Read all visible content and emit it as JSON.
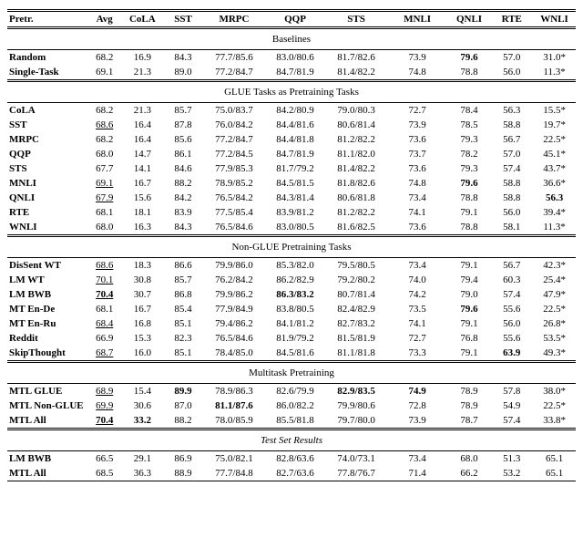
{
  "columns": [
    "Pretr.",
    "Avg",
    "CoLA",
    "SST",
    "MRPC",
    "QQP",
    "STS",
    "MNLI",
    "QNLI",
    "RTE",
    "WNLI"
  ],
  "sections": [
    {
      "title": "Baselines",
      "rows": [
        {
          "label": "Random",
          "label_bold": true,
          "cells": [
            {
              "v": "68.2"
            },
            {
              "v": "16.9"
            },
            {
              "v": "84.3"
            },
            {
              "v": "77.7/85.6"
            },
            {
              "v": "83.0/80.6"
            },
            {
              "v": "81.7/82.6"
            },
            {
              "v": "73.9"
            },
            {
              "v": "79.6",
              "b": true
            },
            {
              "v": "57.0"
            },
            {
              "v": "31.0*"
            }
          ]
        },
        {
          "label": "Single-Task",
          "label_bold": true,
          "cells": [
            {
              "v": "69.1"
            },
            {
              "v": "21.3"
            },
            {
              "v": "89.0"
            },
            {
              "v": "77.2/84.7"
            },
            {
              "v": "84.7/81.9"
            },
            {
              "v": "81.4/82.2"
            },
            {
              "v": "74.8"
            },
            {
              "v": "78.8"
            },
            {
              "v": "56.0"
            },
            {
              "v": "11.3*"
            }
          ]
        }
      ]
    },
    {
      "title": "GLUE Tasks as Pretraining Tasks",
      "rows": [
        {
          "label": "CoLA",
          "label_bold": true,
          "cells": [
            {
              "v": "68.2"
            },
            {
              "v": "21.3"
            },
            {
              "v": "85.7"
            },
            {
              "v": "75.0/83.7"
            },
            {
              "v": "84.2/80.9"
            },
            {
              "v": "79.0/80.3"
            },
            {
              "v": "72.7"
            },
            {
              "v": "78.4"
            },
            {
              "v": "56.3"
            },
            {
              "v": "15.5*"
            }
          ]
        },
        {
          "label": "SST",
          "label_bold": true,
          "cells": [
            {
              "v": "68.6",
              "u": true
            },
            {
              "v": "16.4"
            },
            {
              "v": "87.8"
            },
            {
              "v": "76.0/84.2"
            },
            {
              "v": "84.4/81.6"
            },
            {
              "v": "80.6/81.4"
            },
            {
              "v": "73.9"
            },
            {
              "v": "78.5"
            },
            {
              "v": "58.8"
            },
            {
              "v": "19.7*"
            }
          ]
        },
        {
          "label": "MRPC",
          "label_bold": true,
          "cells": [
            {
              "v": "68.2"
            },
            {
              "v": "16.4"
            },
            {
              "v": "85.6"
            },
            {
              "v": "77.2/84.7"
            },
            {
              "v": "84.4/81.8"
            },
            {
              "v": "81.2/82.2"
            },
            {
              "v": "73.6"
            },
            {
              "v": "79.3"
            },
            {
              "v": "56.7"
            },
            {
              "v": "22.5*"
            }
          ]
        },
        {
          "label": "QQP",
          "label_bold": true,
          "cells": [
            {
              "v": "68.0"
            },
            {
              "v": "14.7"
            },
            {
              "v": "86.1"
            },
            {
              "v": "77.2/84.5"
            },
            {
              "v": "84.7/81.9"
            },
            {
              "v": "81.1/82.0"
            },
            {
              "v": "73.7"
            },
            {
              "v": "78.2"
            },
            {
              "v": "57.0"
            },
            {
              "v": "45.1*"
            }
          ]
        },
        {
          "label": "STS",
          "label_bold": true,
          "cells": [
            {
              "v": "67.7"
            },
            {
              "v": "14.1"
            },
            {
              "v": "84.6"
            },
            {
              "v": "77.9/85.3"
            },
            {
              "v": "81.7/79.2"
            },
            {
              "v": "81.4/82.2"
            },
            {
              "v": "73.6"
            },
            {
              "v": "79.3"
            },
            {
              "v": "57.4"
            },
            {
              "v": "43.7*"
            }
          ]
        },
        {
          "label": "MNLI",
          "label_bold": true,
          "cells": [
            {
              "v": "69.1",
              "u": true
            },
            {
              "v": "16.7"
            },
            {
              "v": "88.2"
            },
            {
              "v": "78.9/85.2"
            },
            {
              "v": "84.5/81.5"
            },
            {
              "v": "81.8/82.6"
            },
            {
              "v": "74.8"
            },
            {
              "v": "79.6",
              "b": true
            },
            {
              "v": "58.8"
            },
            {
              "v": "36.6*"
            }
          ]
        },
        {
          "label": "QNLI",
          "label_bold": true,
          "cells": [
            {
              "v": "67.9",
              "u": true
            },
            {
              "v": "15.6"
            },
            {
              "v": "84.2"
            },
            {
              "v": "76.5/84.2"
            },
            {
              "v": "84.3/81.4"
            },
            {
              "v": "80.6/81.8"
            },
            {
              "v": "73.4"
            },
            {
              "v": "78.8"
            },
            {
              "v": "58.8"
            },
            {
              "v": "56.3",
              "b": true
            }
          ]
        },
        {
          "label": "RTE",
          "label_bold": true,
          "cells": [
            {
              "v": "68.1"
            },
            {
              "v": "18.1"
            },
            {
              "v": "83.9"
            },
            {
              "v": "77.5/85.4"
            },
            {
              "v": "83.9/81.2"
            },
            {
              "v": "81.2/82.2"
            },
            {
              "v": "74.1"
            },
            {
              "v": "79.1"
            },
            {
              "v": "56.0"
            },
            {
              "v": "39.4*"
            }
          ]
        },
        {
          "label": "WNLI",
          "label_bold": true,
          "cells": [
            {
              "v": "68.0"
            },
            {
              "v": "16.3"
            },
            {
              "v": "84.3"
            },
            {
              "v": "76.5/84.6"
            },
            {
              "v": "83.0/80.5"
            },
            {
              "v": "81.6/82.5"
            },
            {
              "v": "73.6"
            },
            {
              "v": "78.8"
            },
            {
              "v": "58.1"
            },
            {
              "v": "11.3*"
            }
          ]
        }
      ]
    },
    {
      "title": "Non-GLUE Pretraining Tasks",
      "rows": [
        {
          "label": "DisSent WT",
          "label_bold": true,
          "cells": [
            {
              "v": "68.6",
              "u": true
            },
            {
              "v": "18.3"
            },
            {
              "v": "86.6"
            },
            {
              "v": "79.9/86.0"
            },
            {
              "v": "85.3/82.0"
            },
            {
              "v": "79.5/80.5"
            },
            {
              "v": "73.4"
            },
            {
              "v": "79.1"
            },
            {
              "v": "56.7"
            },
            {
              "v": "42.3*"
            }
          ]
        },
        {
          "label": "LM WT",
          "label_bold": true,
          "cells": [
            {
              "v": "70.1",
              "u": true
            },
            {
              "v": "30.8"
            },
            {
              "v": "85.7"
            },
            {
              "v": "76.2/84.2"
            },
            {
              "v": "86.2/82.9"
            },
            {
              "v": "79.2/80.2"
            },
            {
              "v": "74.0"
            },
            {
              "v": "79.4"
            },
            {
              "v": "60.3"
            },
            {
              "v": "25.4*"
            }
          ]
        },
        {
          "label": "LM BWB",
          "label_bold": true,
          "cells": [
            {
              "v": "70.4",
              "b": true,
              "u": true
            },
            {
              "v": "30.7"
            },
            {
              "v": "86.8"
            },
            {
              "v": "79.9/86.2"
            },
            {
              "v": "86.3/83.2",
              "b": true
            },
            {
              "v": "80.7/81.4"
            },
            {
              "v": "74.2"
            },
            {
              "v": "79.0"
            },
            {
              "v": "57.4"
            },
            {
              "v": "47.9*"
            }
          ]
        },
        {
          "label": "MT En-De",
          "label_bold": true,
          "cells": [
            {
              "v": "68.1"
            },
            {
              "v": "16.7"
            },
            {
              "v": "85.4"
            },
            {
              "v": "77.9/84.9"
            },
            {
              "v": "83.8/80.5"
            },
            {
              "v": "82.4/82.9"
            },
            {
              "v": "73.5"
            },
            {
              "v": "79.6",
              "b": true
            },
            {
              "v": "55.6"
            },
            {
              "v": "22.5*"
            }
          ]
        },
        {
          "label": "MT En-Ru",
          "label_bold": true,
          "cells": [
            {
              "v": "68.4",
              "u": true
            },
            {
              "v": "16.8"
            },
            {
              "v": "85.1"
            },
            {
              "v": "79.4/86.2"
            },
            {
              "v": "84.1/81.2"
            },
            {
              "v": "82.7/83.2"
            },
            {
              "v": "74.1"
            },
            {
              "v": "79.1"
            },
            {
              "v": "56.0"
            },
            {
              "v": "26.8*"
            }
          ]
        },
        {
          "label": "Reddit",
          "label_bold": true,
          "cells": [
            {
              "v": "66.9"
            },
            {
              "v": "15.3"
            },
            {
              "v": "82.3"
            },
            {
              "v": "76.5/84.6"
            },
            {
              "v": "81.9/79.2"
            },
            {
              "v": "81.5/81.9"
            },
            {
              "v": "72.7"
            },
            {
              "v": "76.8"
            },
            {
              "v": "55.6"
            },
            {
              "v": "53.5*"
            }
          ]
        },
        {
          "label": "SkipThought",
          "label_bold": true,
          "cells": [
            {
              "v": "68.7",
              "u": true
            },
            {
              "v": "16.0"
            },
            {
              "v": "85.1"
            },
            {
              "v": "78.4/85.0"
            },
            {
              "v": "84.5/81.6"
            },
            {
              "v": "81.1/81.8"
            },
            {
              "v": "73.3"
            },
            {
              "v": "79.1"
            },
            {
              "v": "63.9",
              "b": true
            },
            {
              "v": "49.3*"
            }
          ]
        }
      ]
    },
    {
      "title": "Multitask Pretraining",
      "rows": [
        {
          "label": "MTL GLUE",
          "label_bold": true,
          "cells": [
            {
              "v": "68.9",
              "u": true
            },
            {
              "v": "15.4"
            },
            {
              "v": "89.9",
              "b": true
            },
            {
              "v": "78.9/86.3"
            },
            {
              "v": "82.6/79.9"
            },
            {
              "v": "82.9/83.5",
              "b": true
            },
            {
              "v": "74.9",
              "b": true
            },
            {
              "v": "78.9"
            },
            {
              "v": "57.8"
            },
            {
              "v": "38.0*"
            }
          ]
        },
        {
          "label": "MTL Non-GLUE",
          "label_bold": true,
          "cells": [
            {
              "v": "69.9",
              "u": true
            },
            {
              "v": "30.6"
            },
            {
              "v": "87.0"
            },
            {
              "v": "81.1/87.6",
              "b": true
            },
            {
              "v": "86.0/82.2"
            },
            {
              "v": "79.9/80.6"
            },
            {
              "v": "72.8"
            },
            {
              "v": "78.9"
            },
            {
              "v": "54.9"
            },
            {
              "v": "22.5*"
            }
          ]
        },
        {
          "label": "MTL All",
          "label_bold": true,
          "cells": [
            {
              "v": "70.4",
              "b": true,
              "u": true
            },
            {
              "v": "33.2",
              "b": true
            },
            {
              "v": "88.2"
            },
            {
              "v": "78.0/85.9"
            },
            {
              "v": "85.5/81.8"
            },
            {
              "v": "79.7/80.0"
            },
            {
              "v": "73.9"
            },
            {
              "v": "78.7"
            },
            {
              "v": "57.4"
            },
            {
              "v": "33.8*"
            }
          ]
        }
      ]
    },
    {
      "title": "Test Set Results",
      "title_italic": true,
      "rows": [
        {
          "label": "LM BWB",
          "label_bold": true,
          "cells": [
            {
              "v": "66.5"
            },
            {
              "v": "29.1"
            },
            {
              "v": "86.9"
            },
            {
              "v": "75.0/82.1"
            },
            {
              "v": "82.8/63.6"
            },
            {
              "v": "74.0/73.1"
            },
            {
              "v": "73.4"
            },
            {
              "v": "68.0"
            },
            {
              "v": "51.3"
            },
            {
              "v": "65.1"
            }
          ]
        },
        {
          "label": "MTL All",
          "label_bold": true,
          "cells": [
            {
              "v": "68.5"
            },
            {
              "v": "36.3"
            },
            {
              "v": "88.9"
            },
            {
              "v": "77.7/84.8"
            },
            {
              "v": "82.7/63.6"
            },
            {
              "v": "77.8/76.7"
            },
            {
              "v": "71.4"
            },
            {
              "v": "66.2"
            },
            {
              "v": "53.2"
            },
            {
              "v": "65.1"
            }
          ]
        }
      ]
    }
  ]
}
